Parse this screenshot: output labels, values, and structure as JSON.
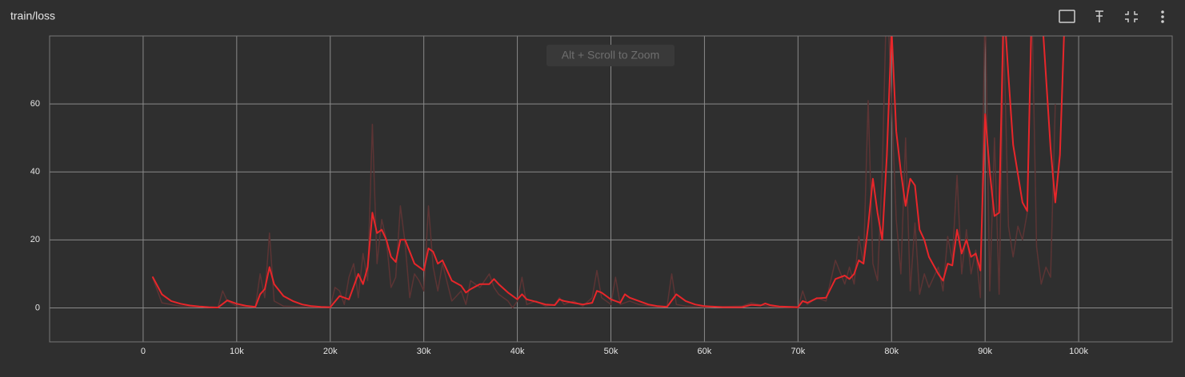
{
  "title": "train/loss",
  "hint": "Alt + Scroll to Zoom",
  "chart_data": {
    "type": "line",
    "xlim": [
      -10000,
      110000
    ],
    "ylim": [
      -10,
      80
    ],
    "xticks": [
      {
        "value": 0,
        "label": "0"
      },
      {
        "value": 10000,
        "label": "10k"
      },
      {
        "value": 20000,
        "label": "20k"
      },
      {
        "value": 30000,
        "label": "30k"
      },
      {
        "value": 40000,
        "label": "40k"
      },
      {
        "value": 50000,
        "label": "50k"
      },
      {
        "value": 60000,
        "label": "60k"
      },
      {
        "value": 70000,
        "label": "70k"
      },
      {
        "value": 80000,
        "label": "80k"
      },
      {
        "value": 90000,
        "label": "90k"
      },
      {
        "value": 100000,
        "label": "100k"
      }
    ],
    "yticks": [
      0,
      20,
      40,
      60
    ],
    "grid": true,
    "series": [
      {
        "color": "#5c3434",
        "x": [
          1000,
          2000,
          3000,
          4000,
          6000,
          8000,
          8500,
          9000,
          10000,
          12000,
          12500,
          13000,
          13500,
          14000,
          15000,
          17000,
          20000,
          20500,
          21000,
          21500,
          22000,
          22500,
          23000,
          23500,
          24000,
          24500,
          25000,
          25500,
          26000,
          26500,
          27000,
          27500,
          28000,
          28500,
          29000,
          29500,
          30000,
          30500,
          31000,
          31500,
          32000,
          33000,
          34000,
          34500,
          35000,
          36000,
          37000,
          37500,
          38000,
          39000,
          39500,
          40000,
          40500,
          41000,
          42000,
          43000,
          44000,
          44500,
          45000,
          46000,
          47000,
          48000,
          48500,
          49000,
          50000,
          50500,
          51000,
          52000,
          53000,
          55000,
          56000,
          56500,
          57000,
          58000,
          60000,
          64000,
          65000,
          67000,
          70000,
          70500,
          71000,
          72000,
          73000,
          74000,
          75000,
          75500,
          76000,
          76500,
          77000,
          77500,
          78000,
          78500,
          79000,
          79500,
          80000,
          80500,
          81000,
          81500,
          82000,
          82500,
          83000,
          83500,
          84000,
          85000,
          85500,
          86000,
          86500,
          87000,
          87500,
          88000,
          88500,
          89000,
          89500,
          90000,
          90500,
          91000,
          91500,
          92000,
          92500,
          93000,
          93500,
          94000,
          94500,
          95000,
          95500,
          96000,
          96500,
          97000,
          97500
        ],
        "values": [
          9,
          1.5,
          1,
          0.5,
          0.3,
          0.1,
          5,
          2,
          0.5,
          0.2,
          10,
          3,
          22,
          2,
          0.5,
          0.3,
          0.1,
          6,
          5,
          1,
          9,
          13,
          3,
          16,
          8,
          54,
          13,
          26,
          20,
          6,
          9,
          30,
          19,
          3,
          10,
          8,
          5,
          30,
          12,
          5,
          13,
          2,
          5,
          1,
          8,
          6,
          10,
          6,
          4,
          2,
          0,
          2,
          9,
          1,
          2,
          0.5,
          1,
          3,
          1,
          2,
          0.5,
          3,
          11,
          3,
          1,
          9,
          1,
          2,
          1,
          0.3,
          0.5,
          10,
          1,
          0.5,
          0.2,
          0.5,
          1.5,
          0.3,
          0,
          5,
          1,
          3,
          2,
          14,
          7,
          12,
          7,
          21,
          13,
          61,
          13,
          8,
          40,
          95,
          60,
          26,
          10,
          50,
          5,
          25,
          4,
          10,
          6,
          12,
          5,
          21,
          14,
          39,
          10,
          23,
          10,
          17,
          3,
          90,
          5,
          50,
          4,
          80,
          24,
          15,
          24,
          20,
          28,
          90,
          18,
          7,
          12,
          9,
          60
        ]
      },
      {
        "color": "#e8262a",
        "x": [
          1000,
          2000,
          3000,
          4000,
          5000,
          6000,
          7000,
          8000,
          9000,
          10000,
          11000,
          12000,
          12500,
          13000,
          13500,
          14000,
          15000,
          16000,
          17000,
          18000,
          19000,
          20000,
          21000,
          22000,
          23000,
          23500,
          24000,
          24500,
          25000,
          25500,
          26000,
          26500,
          27000,
          27500,
          28000,
          29000,
          30000,
          30500,
          31000,
          31500,
          32000,
          33000,
          34000,
          34500,
          35000,
          36000,
          37000,
          37500,
          38000,
          39000,
          40000,
          40500,
          41000,
          42000,
          43000,
          44000,
          44500,
          45000,
          46000,
          47000,
          48000,
          48500,
          49000,
          50000,
          51000,
          51500,
          52000,
          53000,
          54000,
          55000,
          56000,
          57000,
          58000,
          59000,
          60000,
          62000,
          64000,
          65000,
          66000,
          66500,
          67000,
          68000,
          70000,
          70500,
          71000,
          72000,
          73000,
          74000,
          75000,
          75500,
          76000,
          76500,
          77000,
          77500,
          78000,
          78500,
          79000,
          79500,
          80000,
          80500,
          81000,
          81500,
          82000,
          82500,
          83000,
          83500,
          84000,
          85000,
          85500,
          86000,
          86500,
          87000,
          87500,
          88000,
          88500,
          89000,
          89500,
          90000,
          90500,
          91000,
          91500,
          92000,
          92500,
          93000,
          94000,
          94500,
          95000,
          96000,
          97000,
          97500,
          98000,
          98500
        ],
        "values": [
          9.2,
          4,
          2,
          1.2,
          0.7,
          0.4,
          0.2,
          0.1,
          2.2,
          1.2,
          0.6,
          0.3,
          4,
          5.5,
          12,
          7,
          3.5,
          2,
          1,
          0.5,
          0.3,
          0.2,
          3.5,
          2.5,
          10,
          7,
          12,
          28,
          22,
          23,
          20,
          15,
          13.5,
          20,
          20,
          13,
          11,
          17.5,
          16.5,
          13,
          14,
          8,
          6.5,
          4.5,
          5.5,
          7,
          7,
          8.5,
          7,
          4.5,
          2.5,
          4,
          2.5,
          1.8,
          1,
          0.8,
          2.5,
          2,
          1.5,
          1,
          1.5,
          5,
          4.5,
          2.5,
          1.5,
          4,
          3,
          2,
          1,
          0.5,
          0.3,
          4,
          2,
          1,
          0.5,
          0.2,
          0.2,
          0.9,
          0.7,
          1.3,
          0.8,
          0.4,
          0.2,
          2,
          1.5,
          2.8,
          3,
          8.5,
          9.5,
          8.5,
          10,
          14,
          13,
          24,
          38,
          28,
          20,
          45,
          82,
          52,
          40,
          30,
          38,
          36,
          23,
          20,
          15,
          10,
          8,
          13,
          12.5,
          23,
          16,
          20,
          15,
          16,
          11,
          57,
          40,
          27,
          28,
          90,
          68,
          48,
          31,
          28.5,
          90,
          90,
          47,
          31,
          45,
          85
        ]
      }
    ]
  }
}
